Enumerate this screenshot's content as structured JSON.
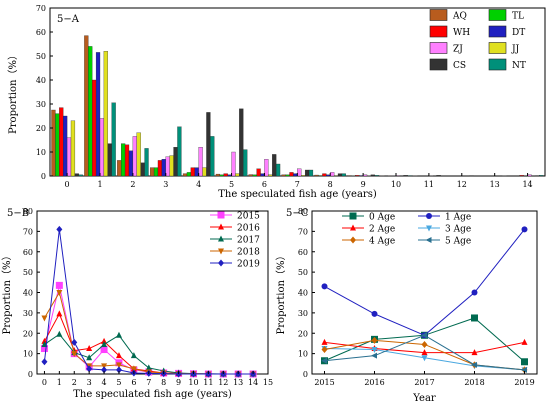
{
  "chart_data": [
    {
      "type": "bar",
      "panel_label": "5−A",
      "xlabel": "The speculated fish age (years)",
      "ylabel": "Proportion（%）",
      "categories": [
        "0",
        "1",
        "2",
        "3",
        "4",
        "5",
        "6",
        "7",
        "8",
        "9",
        "10",
        "11",
        "12",
        "13",
        "14"
      ],
      "ylim": [
        0,
        70
      ],
      "yticks": [
        0,
        10,
        20,
        30,
        40,
        50,
        60,
        70
      ],
      "legend_position": "top-right",
      "series": [
        {
          "name": "AQ",
          "color": "#b85c1e",
          "values": [
            27.5,
            58.5,
            6.5,
            3.5,
            1.0,
            0.8,
            0.6,
            0.5,
            0.4,
            0.2,
            0.1,
            0.1,
            0,
            0,
            0
          ]
        },
        {
          "name": "TL",
          "color": "#00d000",
          "values": [
            26.0,
            54.0,
            13.5,
            3.5,
            1.5,
            0.5,
            0.5,
            0.5,
            0.2,
            0.1,
            0,
            0,
            0,
            0,
            0
          ]
        },
        {
          "name": "WH",
          "color": "#ff0000",
          "values": [
            28.5,
            40.0,
            13.0,
            6.5,
            3.5,
            1.0,
            3.0,
            1.5,
            1.0,
            0.3,
            0.1,
            0,
            0,
            0,
            0.3
          ]
        },
        {
          "name": "DT",
          "color": "#2020c0",
          "values": [
            25.0,
            51.5,
            10.5,
            7.0,
            3.5,
            0.5,
            1.0,
            1.0,
            0.5,
            0.2,
            0.1,
            0,
            0,
            0,
            0
          ]
        },
        {
          "name": "ZJ",
          "color": "#ff80ff",
          "values": [
            16.0,
            24.0,
            16.5,
            8.0,
            12.0,
            10.0,
            7.0,
            3.0,
            1.5,
            0.5,
            0.2,
            0.1,
            0,
            0,
            0.5
          ]
        },
        {
          "name": "JJ",
          "color": "#e0e020",
          "values": [
            23.0,
            52.0,
            18.0,
            8.5,
            3.5,
            1.0,
            0.5,
            0.3,
            0.2,
            0.1,
            0,
            0,
            0,
            0,
            0
          ]
        },
        {
          "name": "CS",
          "color": "#333333",
          "values": [
            1.0,
            13.5,
            5.5,
            12.0,
            26.5,
            28.0,
            9.0,
            2.5,
            1.0,
            0.5,
            0.3,
            0.3,
            0.2,
            0.1,
            0.2
          ]
        },
        {
          "name": "NT",
          "color": "#00907a",
          "values": [
            0.5,
            30.5,
            11.5,
            20.5,
            16.5,
            11.0,
            5.0,
            2.5,
            1.0,
            0.3,
            0.2,
            0,
            0,
            0,
            0.3
          ]
        }
      ]
    },
    {
      "type": "line",
      "panel_label": "5−B",
      "xlabel": "The speculated fish age (years)",
      "ylabel": "Proportion（%）",
      "x": [
        0,
        1,
        2,
        3,
        4,
        5,
        6,
        7,
        8,
        9,
        10,
        11,
        12,
        13,
        14
      ],
      "xlim": [
        -0.5,
        15
      ],
      "xticks": [
        0,
        1,
        2,
        3,
        4,
        5,
        6,
        7,
        8,
        9,
        10,
        11,
        12,
        13,
        14,
        15
      ],
      "ylim": [
        0,
        80
      ],
      "yticks": [
        0,
        10,
        20,
        30,
        40,
        50,
        60,
        70,
        80
      ],
      "legend_position": "top-right",
      "series": [
        {
          "name": "2015",
          "color": "#ff40ff",
          "marker": "square",
          "values": [
            12.5,
            43.5,
            10.0,
            3.5,
            12.0,
            5.5,
            2.0,
            1.0,
            0.5,
            0.3,
            0.1,
            0,
            0,
            0,
            0
          ]
        },
        {
          "name": "2016",
          "color": "#ff0000",
          "marker": "triangle-up",
          "values": [
            16.0,
            29.5,
            11.5,
            12.5,
            16.0,
            9.0,
            2.5,
            1.5,
            0.5,
            0.3,
            0.1,
            0,
            0,
            0,
            0
          ]
        },
        {
          "name": "2017",
          "color": "#006a50",
          "marker": "triangle-up",
          "values": [
            14.5,
            19.5,
            10.5,
            8.0,
            14.5,
            19.0,
            9.0,
            3.0,
            1.5,
            0.5,
            0.2,
            0.1,
            0,
            0,
            0
          ]
        },
        {
          "name": "2018",
          "color": "#cc6600",
          "marker": "triangle-down",
          "values": [
            27.5,
            40.0,
            10.0,
            4.0,
            4.0,
            4.5,
            2.5,
            1.0,
            0.5,
            0.2,
            0.1,
            0,
            0,
            0,
            0
          ]
        },
        {
          "name": "2019",
          "color": "#2020c0",
          "marker": "diamond",
          "values": [
            6.0,
            71.0,
            15.5,
            2.5,
            2.0,
            2.0,
            0.5,
            0.3,
            0.2,
            0,
            0,
            0,
            0,
            0,
            0
          ]
        }
      ]
    },
    {
      "type": "line",
      "panel_label": "5−C",
      "xlabel": "Year",
      "ylabel": "Proportion（%）",
      "x": [
        2015,
        2016,
        2017,
        2018,
        2019
      ],
      "xlim": [
        2014.75,
        2019.25
      ],
      "ylim": [
        0,
        80
      ],
      "yticks": [
        0,
        10,
        20,
        30,
        40,
        50,
        60,
        70,
        80
      ],
      "legend_position": "top-left",
      "series": [
        {
          "name": "0 Age",
          "color": "#006a50",
          "marker": "square",
          "values": [
            6.5,
            17.0,
            19.0,
            27.5,
            6.0
          ]
        },
        {
          "name": "1 Age",
          "color": "#2020c0",
          "marker": "circle",
          "values": [
            43.0,
            29.5,
            19.0,
            40.0,
            71.0
          ]
        },
        {
          "name": "2 Age",
          "color": "#ff0000",
          "marker": "triangle-up",
          "values": [
            15.5,
            12.5,
            10.5,
            10.5,
            15.5
          ]
        },
        {
          "name": "3 Age",
          "color": "#4aa8e0",
          "marker": "triangle-down",
          "values": [
            12.5,
            12.0,
            8.0,
            4.0,
            2.0
          ]
        },
        {
          "name": "4 Age",
          "color": "#cc6600",
          "marker": "diamond",
          "values": [
            12.0,
            16.5,
            14.5,
            4.5,
            2.0
          ]
        },
        {
          "name": "5 Age",
          "color": "#2a7090",
          "marker": "triangle-left",
          "values": [
            6.5,
            9.0,
            19.0,
            4.5,
            2.0
          ]
        }
      ]
    }
  ]
}
